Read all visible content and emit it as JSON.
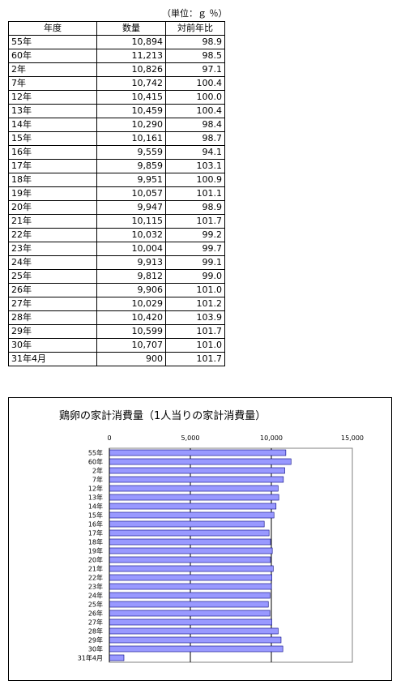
{
  "unit_note": "（単位：ｇ ％）",
  "table": {
    "headers": [
      "年度",
      "数量",
      "対前年比"
    ],
    "rows": [
      [
        "55年",
        "10,894",
        "98.9"
      ],
      [
        "60年",
        "11,213",
        "98.5"
      ],
      [
        "2年",
        "10,826",
        "97.1"
      ],
      [
        "7年",
        "10,742",
        "100.4"
      ],
      [
        "12年",
        "10,415",
        "100.0"
      ],
      [
        "13年",
        "10,459",
        "100.4"
      ],
      [
        "14年",
        "10,290",
        "98.4"
      ],
      [
        "15年",
        "10,161",
        "98.7"
      ],
      [
        "16年",
        "9,559",
        "94.1"
      ],
      [
        "17年",
        "9,859",
        "103.1"
      ],
      [
        "18年",
        "9,951",
        "100.9"
      ],
      [
        "19年",
        "10,057",
        "101.1"
      ],
      [
        "20年",
        "9,947",
        "98.9"
      ],
      [
        "21年",
        "10,115",
        "101.7"
      ],
      [
        "22年",
        "10,032",
        "99.2"
      ],
      [
        "23年",
        "10,004",
        "99.7"
      ],
      [
        "24年",
        "9,913",
        "99.1"
      ],
      [
        "25年",
        "9,812",
        "99.0"
      ],
      [
        "26年",
        "9,906",
        "101.0"
      ],
      [
        "27年",
        "10,029",
        "101.2"
      ],
      [
        "28年",
        "10,420",
        "103.9"
      ],
      [
        "29年",
        "10,599",
        "101.7"
      ],
      [
        "30年",
        "10,707",
        "101.0"
      ],
      [
        "31年4月",
        "900",
        "101.7"
      ]
    ]
  },
  "chart_data": {
    "type": "bar",
    "orientation": "horizontal",
    "title": "鶏卵の家計消費量（1人当りの家計消費量）",
    "categories": [
      "55年",
      "60年",
      "2年",
      "7年",
      "12年",
      "13年",
      "14年",
      "15年",
      "16年",
      "17年",
      "18年",
      "19年",
      "20年",
      "21年",
      "22年",
      "23年",
      "24年",
      "25年",
      "26年",
      "27年",
      "28年",
      "29年",
      "30年",
      "31年4月"
    ],
    "values": [
      10894,
      11213,
      10826,
      10742,
      10415,
      10459,
      10290,
      10161,
      9559,
      9859,
      9951,
      10057,
      9947,
      10115,
      10032,
      10004,
      9913,
      9812,
      9906,
      10029,
      10420,
      10599,
      10707,
      900
    ],
    "xlim": [
      0,
      15000
    ],
    "xticks": [
      "0",
      "5,000",
      "10,000",
      "15,000"
    ],
    "xtick_values": [
      0,
      5000,
      10000,
      15000
    ],
    "grid": true,
    "legend": false,
    "bar_color": "#9999ff",
    "bar_edge_color": "#000080"
  }
}
